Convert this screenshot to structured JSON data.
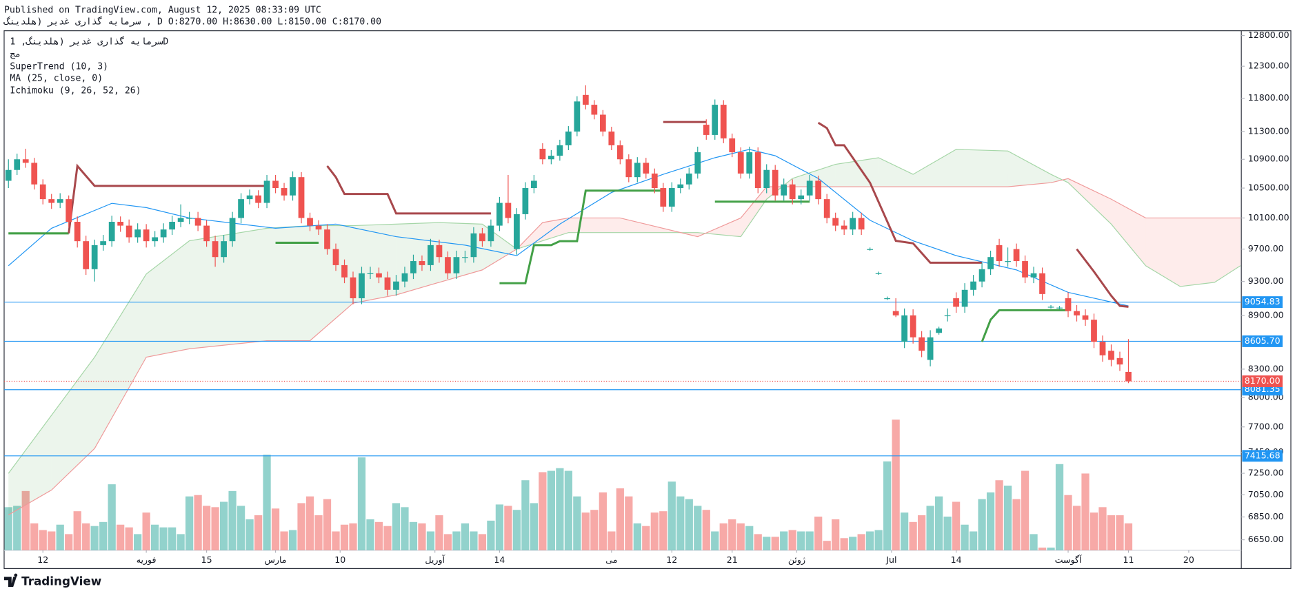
{
  "header": {
    "published": "Published on TradingView.com, August 12, 2025 08:33:09 UTC",
    "symbol_line": "سرمایه گذاری غدیر (هلدینگ , D O:8270.00 H:8630.00 L:8150.00 C:8170.00"
  },
  "legend": {
    "symbol": "سرمایه گذاری غدیر (هلدینگ, 1D",
    "exchange": "مج"
  },
  "footer": "TradingView",
  "chart_data": {
    "type": "candlestick",
    "log_scale": true,
    "grid": false,
    "up_color": "#26a69a",
    "down_color": "#ef5350",
    "ylim": [
      6560,
      12880
    ],
    "yticks": [
      {
        "value": 12800,
        "label": "12800.00"
      },
      {
        "value": 12300,
        "label": "12300.00"
      },
      {
        "value": 11800,
        "label": "11800.00"
      },
      {
        "value": 11300,
        "label": "11300.00"
      },
      {
        "value": 10900,
        "label": "10900.00"
      },
      {
        "value": 10500,
        "label": "10500.00"
      },
      {
        "value": 10100,
        "label": "10100.00"
      },
      {
        "value": 9700,
        "label": "9700.00"
      },
      {
        "value": 9300,
        "label": "9300.00"
      },
      {
        "value": 8900,
        "label": "8900.00"
      },
      {
        "value": 8300,
        "label": "8300.00"
      },
      {
        "value": 8000,
        "label": "8000.00"
      },
      {
        "value": 7700,
        "label": "7700.00"
      },
      {
        "value": 7450,
        "label": "7450.00"
      },
      {
        "value": 7250,
        "label": "7250.00"
      },
      {
        "value": 7050,
        "label": "7050.00"
      },
      {
        "value": 6850,
        "label": "6850.00"
      },
      {
        "value": 6650,
        "label": "6650.00"
      }
    ],
    "xlim": [
      -0.5,
      143.1
    ],
    "xticks": [
      {
        "value": 4,
        "label": "12"
      },
      {
        "value": 16,
        "label": "فوریه"
      },
      {
        "value": 23,
        "label": "15"
      },
      {
        "value": 31,
        "label": "مارس"
      },
      {
        "value": 38.5,
        "label": "10"
      },
      {
        "value": 49.5,
        "label": "آوریل"
      },
      {
        "value": 57,
        "label": "14"
      },
      {
        "value": 70,
        "label": "می"
      },
      {
        "value": 77,
        "label": "12"
      },
      {
        "value": 84,
        "label": "21"
      },
      {
        "value": 91.5,
        "label": "ژوئن"
      },
      {
        "value": 102.5,
        "label": "Jul"
      },
      {
        "value": 110,
        "label": "14"
      },
      {
        "value": 123,
        "label": "آگوست"
      },
      {
        "value": 130,
        "label": "11"
      },
      {
        "value": 137,
        "label": "20"
      }
    ],
    "ohlc": [
      [
        10600,
        10900,
        10500,
        10750
      ],
      [
        10750,
        10980,
        10680,
        10900
      ],
      [
        10900,
        11050,
        10780,
        10850
      ],
      [
        10850,
        10920,
        10480,
        10550
      ],
      [
        10550,
        10620,
        10280,
        10350
      ],
      [
        10350,
        10420,
        10220,
        10300
      ],
      [
        10300,
        10430,
        10230,
        10350
      ],
      [
        10350,
        10400,
        9980,
        10050
      ],
      [
        10050,
        10120,
        9720,
        9800
      ],
      [
        9800,
        9870,
        9380,
        9450
      ],
      [
        9450,
        9820,
        9300,
        9750
      ],
      [
        9750,
        9880,
        9680,
        9800
      ],
      [
        9800,
        10130,
        9730,
        10050
      ],
      [
        10050,
        10120,
        9920,
        10000
      ],
      [
        10000,
        10080,
        9780,
        9850
      ],
      [
        9850,
        10030,
        9780,
        9950
      ],
      [
        9950,
        10020,
        9720,
        9800
      ],
      [
        9800,
        9930,
        9730,
        9850
      ],
      [
        9850,
        10030,
        9780,
        9950
      ],
      [
        9950,
        10130,
        9880,
        10050
      ],
      [
        10050,
        10280,
        9980,
        10100
      ],
      [
        10100,
        10180,
        10020,
        10100
      ],
      [
        10100,
        10180,
        9930,
        10000
      ],
      [
        10000,
        10070,
        9730,
        9800
      ],
      [
        9800,
        9870,
        9480,
        9600
      ],
      [
        9600,
        9880,
        9530,
        9800
      ],
      [
        9800,
        10180,
        9730,
        10100
      ],
      [
        10100,
        10430,
        10030,
        10350
      ],
      [
        10350,
        10480,
        10280,
        10400
      ],
      [
        10400,
        10470,
        10230,
        10300
      ],
      [
        10300,
        10680,
        10230,
        10600
      ],
      [
        10600,
        10680,
        10430,
        10500
      ],
      [
        10500,
        10570,
        10330,
        10400
      ],
      [
        10400,
        10730,
        10330,
        10650
      ],
      [
        10650,
        10720,
        10030,
        10100
      ],
      [
        10100,
        10170,
        9930,
        10000
      ],
      [
        10000,
        10070,
        9880,
        9950
      ],
      [
        9950,
        10020,
        9630,
        9700
      ],
      [
        9700,
        9770,
        9430,
        9500
      ],
      [
        9500,
        9570,
        9280,
        9350
      ],
      [
        9350,
        9420,
        9030,
        9100
      ],
      [
        9100,
        9480,
        9030,
        9400
      ],
      [
        9400,
        9480,
        9330,
        9400
      ],
      [
        9400,
        9470,
        9280,
        9350
      ],
      [
        9350,
        9420,
        9130,
        9200
      ],
      [
        9200,
        9380,
        9130,
        9300
      ],
      [
        9300,
        9480,
        9230,
        9400
      ],
      [
        9400,
        9630,
        9330,
        9550
      ],
      [
        9550,
        9620,
        9430,
        9500
      ],
      [
        9500,
        9830,
        9430,
        9750
      ],
      [
        9750,
        9820,
        9530,
        9600
      ],
      [
        9600,
        9670,
        9330,
        9400
      ],
      [
        9400,
        9680,
        9330,
        9600
      ],
      [
        9600,
        9680,
        9530,
        9600
      ],
      [
        9600,
        9980,
        9530,
        9900
      ],
      [
        9900,
        9970,
        9730,
        9800
      ],
      [
        9800,
        10080,
        9730,
        10000
      ],
      [
        10000,
        10380,
        9930,
        10300
      ],
      [
        10300,
        10680,
        10030,
        10100
      ],
      [
        9700,
        10230,
        9630,
        10150
      ],
      [
        10150,
        10580,
        10080,
        10500
      ],
      [
        10500,
        10680,
        10430,
        10600
      ],
      [
        11050,
        11130,
        10830,
        10900
      ],
      [
        10900,
        11030,
        10830,
        10950
      ],
      [
        10950,
        11180,
        10880,
        11100
      ],
      [
        11100,
        11380,
        11030,
        11300
      ],
      [
        11300,
        11830,
        11230,
        11750
      ],
      [
        11850,
        12000,
        11630,
        11700
      ],
      [
        11700,
        11770,
        11480,
        11550
      ],
      [
        11550,
        11620,
        11230,
        11300
      ],
      [
        11300,
        11370,
        11030,
        11100
      ],
      [
        11100,
        11170,
        10830,
        10900
      ],
      [
        10900,
        10970,
        10580,
        10650
      ],
      [
        10650,
        10930,
        10580,
        10850
      ],
      [
        10850,
        10920,
        10630,
        10700
      ],
      [
        10700,
        10770,
        10430,
        10500
      ],
      [
        10500,
        10570,
        10180,
        10250
      ],
      [
        10250,
        10580,
        10180,
        10500
      ],
      [
        10500,
        10630,
        10430,
        10550
      ],
      [
        10550,
        10780,
        10480,
        10700
      ],
      [
        10700,
        11080,
        10630,
        11000
      ],
      [
        11400,
        11480,
        11180,
        11250
      ],
      [
        11250,
        11780,
        11180,
        11700
      ],
      [
        11700,
        11770,
        11130,
        11200
      ],
      [
        11200,
        11270,
        10930,
        11000
      ],
      [
        11000,
        11070,
        10630,
        10700
      ],
      [
        10700,
        11080,
        10630,
        11000
      ],
      [
        11000,
        11070,
        10430,
        10500
      ],
      [
        10500,
        10830,
        10430,
        10750
      ],
      [
        10750,
        10820,
        10330,
        10400
      ],
      [
        10400,
        10630,
        10330,
        10550
      ],
      [
        10550,
        10620,
        10280,
        10350
      ],
      [
        10350,
        10480,
        10280,
        10400
      ],
      [
        10400,
        10680,
        10330,
        10600
      ],
      [
        10600,
        10670,
        10280,
        10350
      ],
      [
        10350,
        10420,
        10030,
        10100
      ],
      [
        10100,
        10170,
        9930,
        10000
      ],
      [
        10000,
        10070,
        9880,
        9950
      ],
      [
        9950,
        10180,
        9880,
        10100
      ],
      [
        10100,
        10170,
        9880,
        9950
      ],
      [
        9700,
        9720,
        9680,
        9700
      ],
      [
        9400,
        9420,
        9380,
        9400
      ],
      [
        9100,
        9120,
        9080,
        9100
      ],
      [
        8950,
        9100,
        8880,
        8900
      ],
      [
        8600,
        8980,
        8530,
        8900
      ],
      [
        8900,
        8970,
        8580,
        8650
      ],
      [
        8650,
        8720,
        8430,
        8500
      ],
      [
        8400,
        8730,
        8330,
        8650
      ],
      [
        8700,
        8770,
        8680,
        8750
      ],
      [
        8900,
        8980,
        8830,
        8900
      ],
      [
        9100,
        9170,
        8930,
        9000
      ],
      [
        9000,
        9280,
        8930,
        9200
      ],
      [
        9200,
        9380,
        9130,
        9300
      ],
      [
        9300,
        9530,
        9230,
        9450
      ],
      [
        9450,
        9680,
        9380,
        9600
      ],
      [
        9750,
        9830,
        9480,
        9550
      ],
      [
        9550,
        9720,
        9480,
        9550
      ],
      [
        9700,
        9770,
        9480,
        9550
      ],
      [
        9550,
        9620,
        9280,
        9350
      ],
      [
        9350,
        9480,
        9280,
        9400
      ],
      [
        9400,
        9470,
        9080,
        9150
      ],
      [
        9000,
        9020,
        8980,
        9000
      ],
      [
        8990,
        9010,
        8970,
        8990
      ],
      [
        9100,
        9170,
        8880,
        8950
      ],
      [
        8950,
        9020,
        8830,
        8900
      ],
      [
        8900,
        8970,
        8780,
        8850
      ],
      [
        8850,
        8920,
        8530,
        8600
      ],
      [
        8600,
        8670,
        8380,
        8450
      ],
      [
        8500,
        8570,
        8330,
        8400
      ],
      [
        8420,
        8490,
        8280,
        8350
      ],
      [
        8270,
        8630,
        8150,
        8170
      ]
    ],
    "vlim": [
      0,
      100
    ],
    "volume": [
      32,
      33,
      44,
      20,
      15,
      14,
      19,
      12,
      29,
      20,
      18,
      21,
      49,
      19,
      17,
      12,
      28,
      19,
      17,
      17,
      12,
      40,
      41,
      33,
      32,
      36,
      44,
      33,
      23,
      26,
      71,
      31,
      14,
      15,
      35,
      40,
      26,
      38,
      14,
      19,
      20,
      69,
      23,
      21,
      18,
      35,
      32,
      21,
      20,
      14,
      26,
      12,
      14,
      20,
      14,
      12,
      22,
      34,
      33,
      30,
      52,
      35,
      58,
      59,
      61,
      59,
      40,
      28,
      30,
      43,
      14,
      46,
      40,
      20,
      18,
      28,
      29,
      51,
      40,
      38,
      33,
      30,
      14,
      20,
      23,
      20,
      18,
      12,
      10,
      10,
      14,
      15,
      14,
      14,
      25,
      7,
      23,
      9,
      10,
      12,
      14,
      15,
      66,
      97,
      28,
      21,
      26,
      33,
      40,
      25,
      36,
      19,
      14,
      38,
      43,
      52,
      48,
      38,
      59,
      12,
      2,
      2,
      64,
      41,
      33,
      57,
      28,
      32,
      26,
      26,
      20
    ],
    "supertrend": {
      "name": "SuperTrend (10, 3)",
      "up": {
        "color": "#43a047",
        "x": [
          0,
          7,
          8,
          31,
          36,
          37,
          57,
          60,
          61,
          63,
          64,
          66,
          67,
          76,
          77,
          82,
          93,
          94,
          113,
          114,
          115,
          123
        ],
        "values": [
          9900,
          9900,
          null,
          9780,
          9780,
          null,
          9280,
          9280,
          9750,
          9750,
          9800,
          9800,
          10465,
          10465,
          null,
          10316,
          10316,
          null,
          8600,
          8850,
          8960,
          8960
        ]
      },
      "down": {
        "color": "#a8484c",
        "x": [
          7,
          8,
          10,
          30,
          31,
          37,
          38,
          39,
          44,
          45,
          56,
          57,
          76,
          81,
          82,
          94,
          95,
          96,
          97,
          100,
          103,
          105,
          107,
          113,
          114,
          124,
          126,
          128,
          129,
          130
        ],
        "values": [
          9900,
          10806,
          10530,
          10530,
          null,
          10806,
          10650,
          10420,
          10420,
          10160,
          10160,
          null,
          11441,
          11441,
          null,
          11430,
          11350,
          11100,
          11100,
          10574,
          9805,
          9773,
          9530,
          9530,
          null,
          9700,
          9420,
          9130,
          9010,
          9000
        ]
      }
    },
    "ma": {
      "name": "MA (25, close, 0)",
      "color": "#2196f3",
      "x": [
        0,
        5,
        12,
        16,
        21,
        31,
        38,
        45,
        53,
        59,
        64,
        70,
        76,
        82,
        86,
        89,
        94,
        100,
        105,
        110,
        117,
        123,
        130
      ],
      "values": [
        9493,
        9966,
        10294,
        10237,
        10100,
        9966,
        10020,
        9858,
        9750,
        9618,
        10020,
        10440,
        10689,
        10922,
        11041,
        10950,
        10632,
        10070,
        9805,
        9618,
        9441,
        9170,
        9010
      ]
    },
    "ichimoku": {
      "name": "Ichimoku (9, 26, 52, 26)",
      "a_color": "#a5d6a7",
      "b_color": "#ef9a9a",
      "up_fill": "rgba(67,160,71,0.1)",
      "down_fill": "rgba(244,67,54,0.1)",
      "x": [
        0,
        5,
        10,
        16,
        21,
        30,
        35,
        40,
        45,
        50,
        55,
        59,
        62,
        65,
        71,
        80,
        85,
        88,
        91,
        96,
        101,
        105,
        110,
        116,
        121,
        123,
        128,
        132,
        136,
        140,
        143
      ],
      "span_a": [
        7249,
        7817,
        8430,
        9391,
        9805,
        9966,
        10000,
        10000,
        10020,
        10040,
        10020,
        9700,
        9805,
        9910,
        9910,
        9910,
        9858,
        10349,
        10632,
        10829,
        10922,
        10689,
        11041,
        11018,
        10689,
        10574,
        10020,
        9493,
        9240,
        9290,
        9493
      ],
      "span_b": [
        6868,
        7094,
        7487,
        8430,
        8522,
        8612,
        8612,
        9042,
        9140,
        9290,
        9441,
        9700,
        10040,
        10100,
        10100,
        9858,
        10100,
        10518,
        10518,
        10518,
        10518,
        10518,
        10518,
        10518,
        10574,
        10630,
        10350,
        10100,
        10100,
        10100,
        10100
      ]
    },
    "hlines": [
      {
        "value": 9054.83,
        "label": "9054.83"
      },
      {
        "value": 8605.7,
        "label": "8605.70"
      },
      {
        "value": 8081.35,
        "label": "8081.35"
      },
      {
        "value": 7415.68,
        "label": "7415.68"
      }
    ],
    "hline_color": "#2196f3",
    "last_price": {
      "value": 8170,
      "label": "8170.00"
    }
  }
}
